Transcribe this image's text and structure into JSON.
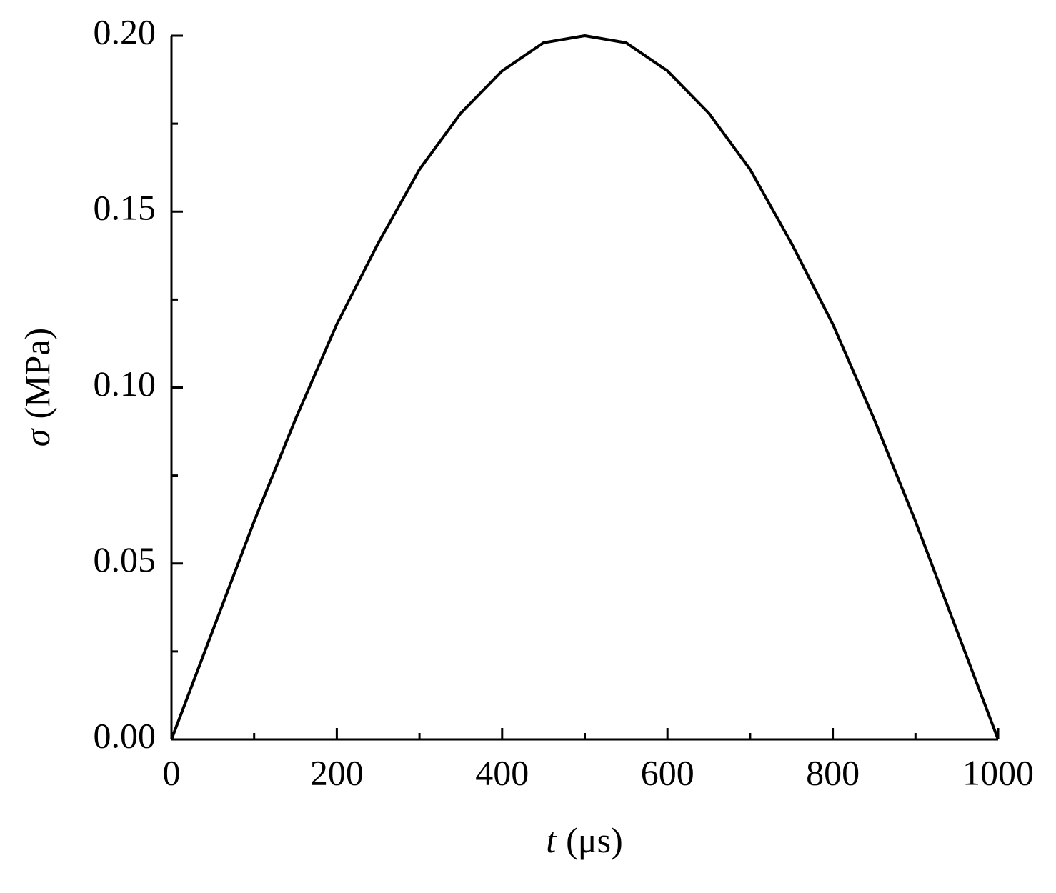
{
  "chart_data": {
    "type": "line",
    "xlabel": {
      "symbol": "t",
      "unit": "(μs)"
    },
    "ylabel": {
      "symbol": "σ",
      "unit": "(MPa)"
    },
    "x": [
      0,
      50,
      100,
      150,
      200,
      250,
      300,
      350,
      400,
      450,
      500,
      550,
      600,
      650,
      700,
      750,
      800,
      850,
      900,
      950,
      1000
    ],
    "series": [
      {
        "color": "#000000",
        "values": [
          0,
          0.031,
          0.062,
          0.091,
          0.118,
          0.141,
          0.162,
          0.178,
          0.19,
          0.198,
          0.2,
          0.198,
          0.19,
          0.178,
          0.162,
          0.141,
          0.118,
          0.091,
          0.062,
          0.031,
          0
        ]
      }
    ],
    "xlim": [
      0,
      1000
    ],
    "ylim": [
      0,
      0.2
    ],
    "xticks": [
      0,
      200,
      400,
      600,
      800,
      1000
    ],
    "xminorticks": [
      100,
      300,
      500,
      700,
      900
    ],
    "yticks": [
      {
        "value": 0,
        "label": "0.00"
      },
      {
        "value": 0.05,
        "label": "0.05"
      },
      {
        "value": 0.1,
        "label": "0.10"
      },
      {
        "value": 0.15,
        "label": "0.15"
      },
      {
        "value": 0.2,
        "label": "0.20"
      }
    ],
    "yminorticks": [
      0.025,
      0.075,
      0.125,
      0.175
    ],
    "grid": false
  }
}
